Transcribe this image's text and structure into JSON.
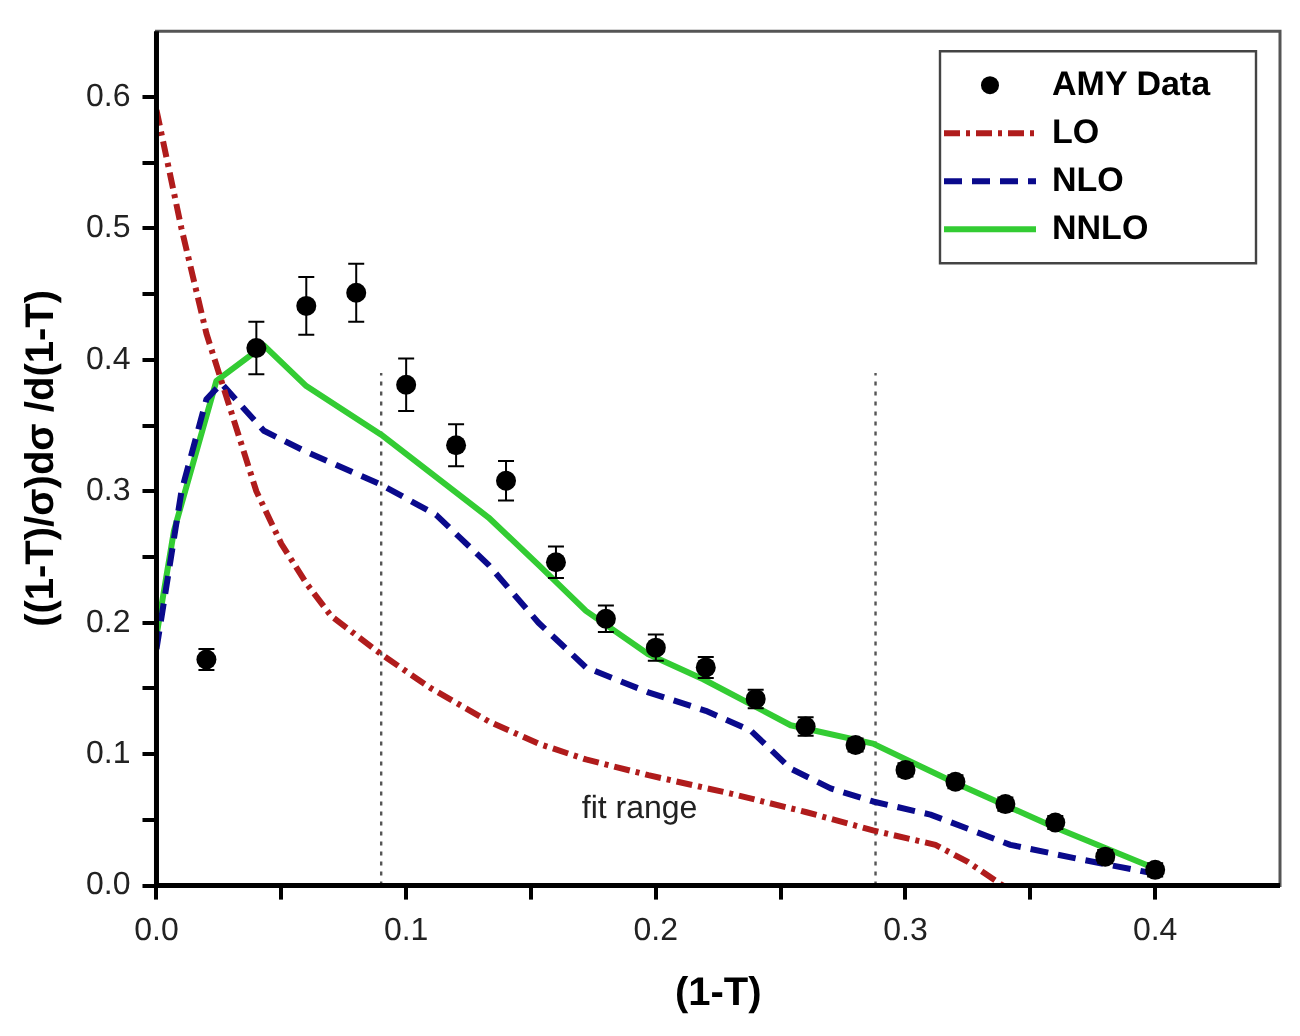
{
  "chart_data": {
    "type": "line",
    "xlabel": "(1-T)",
    "ylabel": "((1-T)/σ)dσ /d(1-T)",
    "xlim": [
      0,
      0.45
    ],
    "ylim": [
      0,
      0.65
    ],
    "xticks": [
      {
        "value": 0,
        "label": "0.0"
      },
      {
        "value": 0.05,
        "label": null
      },
      0.1,
      {
        "value": 0.15,
        "label": null
      },
      0.2,
      {
        "value": 0.25,
        "label": null
      },
      0.3,
      {
        "value": 0.35,
        "label": null
      },
      0.4
    ],
    "yticks": [
      {
        "value": 0,
        "label": "0.0"
      },
      {
        "value": 0.05,
        "label": null
      },
      0.1,
      {
        "value": 0.15,
        "label": null
      },
      0.2,
      {
        "value": 0.25,
        "label": null
      },
      0.3,
      {
        "value": 0.35,
        "label": null
      },
      0.4,
      {
        "value": 0.45,
        "label": null
      },
      0.5,
      {
        "value": 0.55,
        "label": null
      },
      0.6
    ],
    "grid": false,
    "legend": "top right",
    "series": [
      {
        "name": "AMY Data",
        "type": "scatter",
        "marker": "circle",
        "color": "#000000",
        "x": [
          0.02,
          0.04,
          0.06,
          0.08,
          0.1,
          0.12,
          0.14,
          0.16,
          0.18,
          0.2,
          0.22,
          0.24,
          0.26,
          0.28,
          0.3,
          0.32,
          0.34,
          0.36,
          0.38,
          0.4
        ],
        "values": [
          0.172,
          0.409,
          0.441,
          0.451,
          0.381,
          0.335,
          0.308,
          0.246,
          0.203,
          0.181,
          0.166,
          0.142,
          0.121,
          0.107,
          0.088,
          0.079,
          0.062,
          0.048,
          0.022,
          0.012
        ],
        "errors": [
          0.008,
          0.02,
          0.022,
          0.022,
          0.02,
          0.016,
          0.015,
          0.012,
          0.01,
          0.01,
          0.008,
          0.007,
          0.007,
          0.005,
          0.005,
          0.005,
          0.005,
          0.005,
          0.005,
          0.005
        ]
      },
      {
        "name": "LO",
        "line_style": "dashdot",
        "color": "#b01c1c",
        "x": [
          0,
          0.01,
          0.02,
          0.03,
          0.04,
          0.05,
          0.06,
          0.07,
          0.09,
          0.11,
          0.133,
          0.153,
          0.172,
          0.197,
          0.23,
          0.26,
          0.287,
          0.312,
          0.325,
          0.339
        ],
        "values": [
          0.59,
          0.5,
          0.42,
          0.36,
          0.3,
          0.26,
          0.23,
          0.205,
          0.176,
          0.15,
          0.125,
          0.108,
          0.096,
          0.084,
          0.07,
          0.056,
          0.042,
          0.031,
          0.018,
          0.0
        ]
      },
      {
        "name": "NLO",
        "line_style": "dashed",
        "color": "#0a0a8c",
        "x": [
          0,
          0.01,
          0.02,
          0.026,
          0.043,
          0.06,
          0.09,
          0.112,
          0.133,
          0.153,
          0.172,
          0.197,
          0.22,
          0.238,
          0.254,
          0.27,
          0.287,
          0.31,
          0.342,
          0.37,
          0.4
        ],
        "values": [
          0.18,
          0.3,
          0.37,
          0.382,
          0.346,
          0.33,
          0.305,
          0.282,
          0.244,
          0.2,
          0.166,
          0.147,
          0.133,
          0.118,
          0.089,
          0.074,
          0.064,
          0.054,
          0.031,
          0.02,
          0.009
        ]
      },
      {
        "name": "NNLO",
        "line_style": "solid",
        "color": "#33cc33",
        "x": [
          0,
          0.007,
          0.024,
          0.043,
          0.06,
          0.09,
          0.133,
          0.153,
          0.172,
          0.197,
          0.219,
          0.254,
          0.287,
          0.32,
          0.359,
          0.4
        ],
        "values": [
          0.19,
          0.27,
          0.384,
          0.411,
          0.38,
          0.343,
          0.28,
          0.244,
          0.209,
          0.176,
          0.157,
          0.122,
          0.108,
          0.078,
          0.045,
          0.013
        ]
      }
    ],
    "ref_lines": [
      {
        "axis": "x",
        "value": 0.09,
        "line_style": "dotted",
        "color": "#555555"
      },
      {
        "axis": "x",
        "value": 0.288,
        "line_style": "dotted",
        "color": "#555555"
      }
    ],
    "annotations": [
      "fit range"
    ]
  }
}
